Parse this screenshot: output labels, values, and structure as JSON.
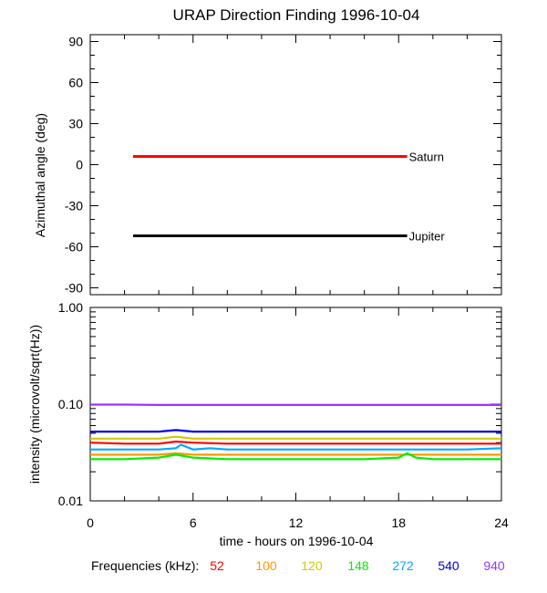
{
  "chart_data": [
    {
      "type": "line",
      "title": "URAP Direction Finding  1996-10-04",
      "ylabel": "Azimuthal angle (deg)",
      "ylim": [
        -95,
        95
      ],
      "xlim": [
        0,
        24
      ],
      "yticks": [
        90,
        60,
        30,
        0,
        -30,
        -60,
        -90
      ],
      "grid": false,
      "series": [
        {
          "name": "Saturn",
          "color": "#ff0000",
          "x": [
            2.5,
            18.5
          ],
          "y": [
            6,
            6
          ]
        },
        {
          "name": "Jupiter",
          "color": "#000000",
          "x": [
            2.5,
            18.5
          ],
          "y": [
            -52,
            -52
          ]
        }
      ]
    },
    {
      "type": "line",
      "ylabel": "intensity (microvolt/sqrt(Hz))",
      "yscale": "log",
      "ylim": [
        0.01,
        1.0
      ],
      "yticks": [
        "1.00",
        "0.10",
        "0.01"
      ],
      "xlabel": "time - hours on 1996-10-04",
      "xlim": [
        0,
        24
      ],
      "xticks": [
        "0",
        "6",
        "12",
        "18",
        "24"
      ],
      "grid": false,
      "legend_label": "Frequencies (kHz):",
      "series": [
        {
          "name": "52",
          "color": "#ff0000",
          "x": [
            0,
            2,
            4,
            5,
            6,
            8,
            10,
            12,
            14,
            16,
            18,
            20,
            22,
            24
          ],
          "y": [
            0.04,
            0.039,
            0.039,
            0.041,
            0.04,
            0.039,
            0.039,
            0.039,
            0.039,
            0.039,
            0.039,
            0.039,
            0.039,
            0.039
          ]
        },
        {
          "name": "100",
          "color": "#ff9900",
          "x": [
            0,
            2,
            4,
            5,
            6,
            8,
            10,
            12,
            14,
            16,
            18,
            20,
            22,
            24
          ],
          "y": [
            0.03,
            0.03,
            0.03,
            0.031,
            0.03,
            0.03,
            0.03,
            0.03,
            0.03,
            0.03,
            0.03,
            0.03,
            0.03,
            0.03
          ]
        },
        {
          "name": "120",
          "color": "#cccc00",
          "x": [
            0,
            2,
            4,
            5,
            6,
            8,
            10,
            12,
            14,
            16,
            18,
            20,
            22,
            24
          ],
          "y": [
            0.044,
            0.044,
            0.044,
            0.046,
            0.044,
            0.044,
            0.044,
            0.044,
            0.044,
            0.044,
            0.044,
            0.044,
            0.044,
            0.044
          ]
        },
        {
          "name": "148",
          "color": "#00ee00",
          "x": [
            0,
            2,
            4,
            5,
            5.5,
            6,
            8,
            10,
            12,
            14,
            16,
            18,
            18.5,
            19,
            20,
            22,
            24
          ],
          "y": [
            0.027,
            0.027,
            0.028,
            0.03,
            0.029,
            0.028,
            0.027,
            0.027,
            0.027,
            0.027,
            0.027,
            0.028,
            0.031,
            0.028,
            0.027,
            0.027,
            0.027
          ]
        },
        {
          "name": "272",
          "color": "#00aaff",
          "x": [
            0,
            2,
            4,
            5,
            5.3,
            6,
            7,
            8,
            10,
            12,
            14,
            16,
            18,
            20,
            22,
            24
          ],
          "y": [
            0.034,
            0.034,
            0.034,
            0.035,
            0.038,
            0.034,
            0.035,
            0.034,
            0.034,
            0.034,
            0.034,
            0.034,
            0.034,
            0.034,
            0.034,
            0.035
          ]
        },
        {
          "name": "540",
          "color": "#0000dd",
          "x": [
            0,
            2,
            4,
            5,
            6,
            8,
            10,
            12,
            14,
            16,
            18,
            20,
            22,
            24
          ],
          "y": [
            0.052,
            0.052,
            0.052,
            0.054,
            0.052,
            0.052,
            0.052,
            0.052,
            0.052,
            0.052,
            0.052,
            0.052,
            0.052,
            0.052
          ]
        },
        {
          "name": "940",
          "color": "#9933ff",
          "x": [
            0,
            2,
            4,
            6,
            8,
            10,
            12,
            14,
            16,
            18,
            20,
            22,
            24
          ],
          "y": [
            0.099,
            0.099,
            0.098,
            0.098,
            0.098,
            0.098,
            0.098,
            0.098,
            0.098,
            0.098,
            0.098,
            0.098,
            0.098
          ]
        }
      ]
    }
  ]
}
